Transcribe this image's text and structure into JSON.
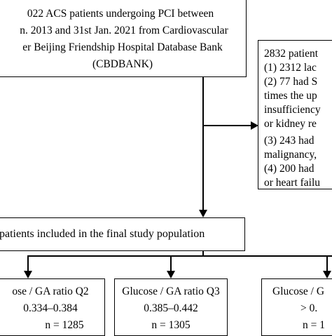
{
  "top_box": {
    "lines": [
      "022 ACS patients undergoing PCI between",
      "n. 2013 and 31st Jan. 2021 from Cardiovascular",
      "er Beijing Friendship Hospital Database Bank",
      "(CBDBANK)"
    ]
  },
  "exclusion_box": {
    "lines": [
      "2832 patient",
      "(1) 2312 lac",
      "(2) 77 had S",
      "times the up",
      "insufficiency",
      "or kidney re",
      "(3) 243 had",
      "malignancy,",
      "(4) 200 had",
      "or heart failu"
    ]
  },
  "final_box": {
    "text": "patients included in the final study population"
  },
  "quartiles": [
    {
      "label": "ose / GA ratio Q2",
      "range": "0.334–0.384",
      "n": "n = 1285"
    },
    {
      "label": "Glucose / GA ratio Q3",
      "range": "0.385–0.442",
      "n": "n = 1305"
    },
    {
      "label": "Glucose / G",
      "range": "> 0.",
      "n": "n = 1"
    }
  ]
}
